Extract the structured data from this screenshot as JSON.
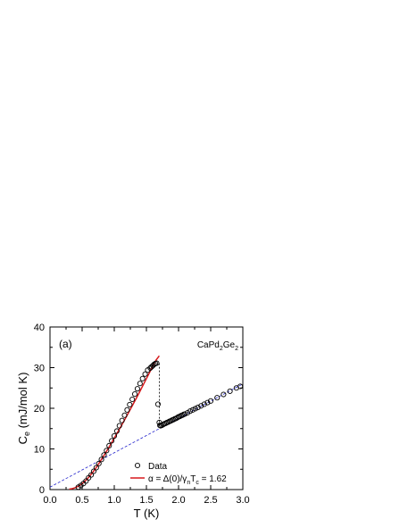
{
  "chart_data": {
    "type": "scatter",
    "panel_label": "(a)",
    "sample": {
      "base": "CaPd",
      "sub1": "2",
      "mid": "Ge",
      "sub2": "2"
    },
    "xlabel": "T (K)",
    "ylabel": {
      "base": "C",
      "sub": "e",
      "rest": " (mJ/mol K)"
    },
    "xlim": [
      0,
      3
    ],
    "ylim": [
      0,
      40
    ],
    "xticks": [
      "0.0",
      "0.5",
      "1.0",
      "1.5",
      "2.0",
      "2.5",
      "3.0"
    ],
    "yticks": [
      "0",
      "10",
      "20",
      "30",
      "40"
    ],
    "grid": false,
    "legend_placement": "bottom-right",
    "legend": {
      "data_label": "Data",
      "fit_label": {
        "a": "α = Δ(0)/γ",
        "s1": "n",
        "b": "T",
        "s2": "c",
        "c": " = 1.62"
      }
    },
    "colors": {
      "fit": "#d7191c",
      "normal": "#2222cc",
      "marker": "#000000"
    },
    "series": [
      {
        "name": "Data",
        "kind": "markers",
        "x": [
          0.44,
          0.48,
          0.52,
          0.56,
          0.6,
          0.64,
          0.68,
          0.72,
          0.76,
          0.8,
          0.84,
          0.88,
          0.92,
          0.96,
          1.0,
          1.04,
          1.08,
          1.12,
          1.16,
          1.2,
          1.24,
          1.28,
          1.32,
          1.36,
          1.4,
          1.44,
          1.48,
          1.52,
          1.56,
          1.58,
          1.6,
          1.62,
          1.64,
          1.66,
          1.68,
          1.7,
          1.71,
          1.72,
          1.74,
          1.76,
          1.78,
          1.8,
          1.82,
          1.84,
          1.86,
          1.88,
          1.9,
          1.92,
          1.94,
          1.96,
          1.98,
          2.0,
          2.02,
          2.04,
          2.06,
          2.08,
          2.1,
          2.14,
          2.18,
          2.22,
          2.26,
          2.3,
          2.35,
          2.4,
          2.45,
          2.5,
          2.6,
          2.7,
          2.8,
          2.9,
          2.96
        ],
        "y": [
          0.6,
          1.0,
          1.5,
          2.1,
          2.9,
          3.6,
          4.5,
          5.4,
          6.4,
          7.4,
          8.5,
          9.6,
          10.8,
          12.0,
          13.2,
          14.4,
          15.7,
          17.0,
          18.3,
          19.6,
          20.9,
          22.2,
          23.5,
          24.8,
          26.1,
          27.3,
          28.4,
          29.4,
          29.9,
          30.2,
          30.5,
          30.8,
          31.0,
          31.1,
          21.0,
          16.5,
          15.8,
          15.7,
          15.8,
          16.0,
          16.2,
          16.3,
          16.5,
          16.6,
          16.8,
          16.9,
          17.1,
          17.2,
          17.4,
          17.5,
          17.7,
          17.9,
          18.0,
          18.2,
          18.3,
          18.5,
          18.6,
          18.9,
          19.3,
          19.6,
          19.9,
          20.2,
          20.6,
          21.0,
          21.4,
          21.8,
          22.6,
          23.4,
          24.2,
          25.0,
          25.4
        ]
      },
      {
        "name": "α = Δ(0)/γnTc = 1.62",
        "kind": "line",
        "x": [
          0.3,
          0.35,
          0.4,
          0.45,
          0.5,
          0.55,
          0.6,
          0.65,
          0.7,
          0.75,
          0.8,
          0.85,
          0.9,
          0.95,
          1.0,
          1.05,
          1.1,
          1.15,
          1.2,
          1.25,
          1.3,
          1.35,
          1.4,
          1.45,
          1.5,
          1.55,
          1.6,
          1.65,
          1.7
        ],
        "y": [
          0.1,
          0.25,
          0.5,
          0.9,
          1.45,
          2.15,
          3.0,
          3.95,
          5.0,
          6.15,
          7.4,
          8.65,
          9.95,
          11.3,
          12.65,
          14.05,
          15.45,
          16.85,
          18.3,
          19.75,
          21.2,
          22.7,
          24.2,
          25.75,
          27.3,
          28.85,
          30.45,
          31.85,
          32.9
        ]
      }
    ],
    "normal_state_line": {
      "x": [
        0.0,
        3.0
      ],
      "y": [
        0.6,
        26.0
      ]
    },
    "jump_line": {
      "x": [
        1.7,
        1.7
      ],
      "y": [
        15.7,
        31.5
      ]
    }
  }
}
